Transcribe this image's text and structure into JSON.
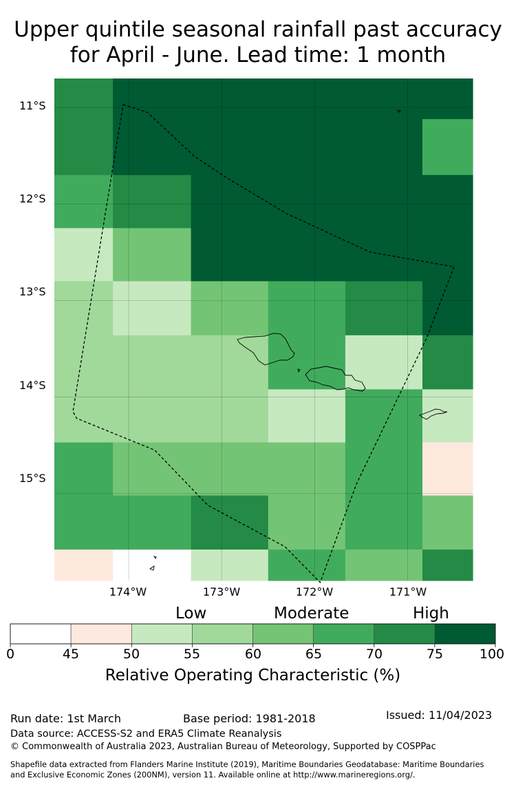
{
  "title": {
    "line1": "Upper quintile seasonal rainfall past accuracy",
    "line2": "for April - June. Lead time: 1 month"
  },
  "chart_data": {
    "type": "heatmap",
    "map_extent": {
      "lon_min": -174.8,
      "lon_max": -170.3,
      "lat_min": -15.9,
      "lat_max": -10.7
    },
    "lat_labels": [
      "11°S",
      "12°S",
      "13°S",
      "14°S",
      "15°S"
    ],
    "lon_labels": [
      "174°W",
      "173°W",
      "172°W",
      "171°W"
    ],
    "category_labels": {
      "low": "Low",
      "moderate": "Moderate",
      "high": "High"
    },
    "colorbar": {
      "label": "Relative Operating Characteristic (%)",
      "ticks": [
        "0",
        "45",
        "50",
        "55",
        "60",
        "65",
        "70",
        "75",
        "100"
      ],
      "bins": [
        {
          "range": [
            0,
            45
          ],
          "color": "#ffffff"
        },
        {
          "range": [
            45,
            50
          ],
          "color": "#fee9df"
        },
        {
          "range": [
            50,
            55
          ],
          "color": "#c7e9c0"
        },
        {
          "range": [
            55,
            60
          ],
          "color": "#a1d99b"
        },
        {
          "range": [
            60,
            65
          ],
          "color": "#74c476"
        },
        {
          "range": [
            65,
            70
          ],
          "color": "#41ab5d"
        },
        {
          "range": [
            70,
            75
          ],
          "color": "#238b45"
        },
        {
          "range": [
            75,
            100
          ],
          "color": "#005a32"
        }
      ]
    },
    "grid": {
      "cells": [
        {
          "lon": [
            -174.8,
            -174.17
          ],
          "lat": [
            -10.7,
            -11.7
          ],
          "bin": 6
        },
        {
          "lon": [
            -174.17,
            -173.33
          ],
          "lat": [
            -10.7,
            -11.7
          ],
          "bin": 7
        },
        {
          "lon": [
            -173.33,
            -170.3
          ],
          "lat": [
            -10.7,
            -11.12
          ],
          "bin": 7
        },
        {
          "lon": [
            -173.33,
            -170.84
          ],
          "lat": [
            -11.12,
            -11.7
          ],
          "bin": 7
        },
        {
          "lon": [
            -170.84,
            -170.3
          ],
          "lat": [
            -11.12,
            -11.7
          ],
          "bin": 5
        },
        {
          "lon": [
            -174.8,
            -174.17
          ],
          "lat": [
            -11.7,
            -12.25
          ],
          "bin": 5
        },
        {
          "lon": [
            -174.17,
            -173.33
          ],
          "lat": [
            -11.7,
            -12.25
          ],
          "bin": 6
        },
        {
          "lon": [
            -173.33,
            -170.3
          ],
          "lat": [
            -11.7,
            -12.25
          ],
          "bin": 7
        },
        {
          "lon": [
            -174.8,
            -174.17
          ],
          "lat": [
            -12.25,
            -12.8
          ],
          "bin": 2
        },
        {
          "lon": [
            -174.17,
            -173.33
          ],
          "lat": [
            -12.25,
            -12.8
          ],
          "bin": 4
        },
        {
          "lon": [
            -173.33,
            -170.3
          ],
          "lat": [
            -12.25,
            -12.8
          ],
          "bin": 7
        },
        {
          "lon": [
            -174.8,
            -174.17
          ],
          "lat": [
            -12.8,
            -13.36
          ],
          "bin": 3
        },
        {
          "lon": [
            -174.17,
            -173.33
          ],
          "lat": [
            -12.8,
            -13.36
          ],
          "bin": 2
        },
        {
          "lon": [
            -173.33,
            -172.5
          ],
          "lat": [
            -12.8,
            -13.36
          ],
          "bin": 4
        },
        {
          "lon": [
            -172.5,
            -171.67
          ],
          "lat": [
            -12.8,
            -13.36
          ],
          "bin": 5
        },
        {
          "lon": [
            -171.67,
            -170.84
          ],
          "lat": [
            -12.8,
            -13.36
          ],
          "bin": 6
        },
        {
          "lon": [
            -170.84,
            -170.3
          ],
          "lat": [
            -12.8,
            -13.36
          ],
          "bin": 7
        },
        {
          "lon": [
            -174.8,
            -172.5
          ],
          "lat": [
            -13.36,
            -13.92
          ],
          "bin": 3
        },
        {
          "lon": [
            -172.5,
            -171.67
          ],
          "lat": [
            -13.36,
            -13.92
          ],
          "bin": 5
        },
        {
          "lon": [
            -171.67,
            -170.84
          ],
          "lat": [
            -13.36,
            -13.92
          ],
          "bin": 2
        },
        {
          "lon": [
            -170.84,
            -170.3
          ],
          "lat": [
            -13.36,
            -13.92
          ],
          "bin": 6
        },
        {
          "lon": [
            -174.8,
            -172.5
          ],
          "lat": [
            -13.92,
            -14.47
          ],
          "bin": 3
        },
        {
          "lon": [
            -172.5,
            -171.67
          ],
          "lat": [
            -13.92,
            -14.47
          ],
          "bin": 2
        },
        {
          "lon": [
            -171.67,
            -170.84
          ],
          "lat": [
            -13.92,
            -14.47
          ],
          "bin": 5
        },
        {
          "lon": [
            -170.84,
            -170.3
          ],
          "lat": [
            -13.92,
            -14.47
          ],
          "bin": 2
        },
        {
          "lon": [
            -174.8,
            -174.17
          ],
          "lat": [
            -14.47,
            -15.02
          ],
          "bin": 5
        },
        {
          "lon": [
            -174.17,
            -171.67
          ],
          "lat": [
            -14.47,
            -15.02
          ],
          "bin": 4
        },
        {
          "lon": [
            -171.67,
            -170.84
          ],
          "lat": [
            -14.47,
            -15.02
          ],
          "bin": 5
        },
        {
          "lon": [
            -170.84,
            -170.3
          ],
          "lat": [
            -14.47,
            -15.02
          ],
          "bin": 1
        },
        {
          "lon": [
            -174.8,
            -173.33
          ],
          "lat": [
            -15.02,
            -15.58
          ],
          "bin": 5
        },
        {
          "lon": [
            -173.33,
            -172.5
          ],
          "lat": [
            -15.02,
            -15.58
          ],
          "bin": 6
        },
        {
          "lon": [
            -172.5,
            -171.67
          ],
          "lat": [
            -15.02,
            -15.58
          ],
          "bin": 4
        },
        {
          "lon": [
            -171.67,
            -170.84
          ],
          "lat": [
            -15.02,
            -15.58
          ],
          "bin": 5
        },
        {
          "lon": [
            -170.84,
            -170.3
          ],
          "lat": [
            -15.02,
            -15.58
          ],
          "bin": 4
        },
        {
          "lon": [
            -174.8,
            -174.17
          ],
          "lat": [
            -15.58,
            -15.9
          ],
          "bin": 1
        },
        {
          "lon": [
            -174.17,
            -173.33
          ],
          "lat": [
            -15.58,
            -15.9
          ],
          "bin": 0
        },
        {
          "lon": [
            -173.33,
            -172.5
          ],
          "lat": [
            -15.58,
            -15.9
          ],
          "bin": 2
        },
        {
          "lon": [
            -172.5,
            -171.67
          ],
          "lat": [
            -15.58,
            -15.9
          ],
          "bin": 5
        },
        {
          "lon": [
            -171.67,
            -170.84
          ],
          "lat": [
            -15.58,
            -15.9
          ],
          "bin": 4
        },
        {
          "lon": [
            -170.84,
            -170.3
          ],
          "lat": [
            -15.58,
            -15.9
          ],
          "bin": 6
        }
      ]
    },
    "eez_boundary": [
      [
        -174.06,
        -10.97
      ],
      [
        -173.8,
        -11.05
      ],
      [
        -173.3,
        -11.5
      ],
      [
        -172.96,
        -11.72
      ],
      [
        -172.3,
        -12.1
      ],
      [
        -171.4,
        -12.5
      ],
      [
        -170.5,
        -12.65
      ],
      [
        -170.8,
        -13.4
      ],
      [
        -171.04,
        -13.88
      ],
      [
        -171.55,
        -14.9
      ],
      [
        -171.94,
        -15.92
      ],
      [
        -172.32,
        -15.55
      ],
      [
        -173.15,
        -15.12
      ],
      [
        -173.72,
        -14.55
      ],
      [
        -174.56,
        -14.22
      ],
      [
        -174.6,
        -14.15
      ],
      [
        -174.06,
        -10.97
      ]
    ]
  },
  "footer": {
    "run_date": "Run date: 1st March",
    "base_period": "Base period: 1981-2018",
    "issued": "Issued: 11/04/2023",
    "data_source": "Data source: ACCESS-S2 and ERA5 Climate Reanalysis",
    "copyright": "© Commonwealth of Australia 2023, Australian Bureau of Meteorology, Supported by COSPPac",
    "shapefile_1": "Shapefile data extracted from Flanders Marine Institute (2019), Maritime Boundaries Geodatabase: Maritime Boundaries",
    "shapefile_2": "and Exclusive Economic Zones (200NM), version 11. Available online at http://www.marineregions.org/."
  }
}
